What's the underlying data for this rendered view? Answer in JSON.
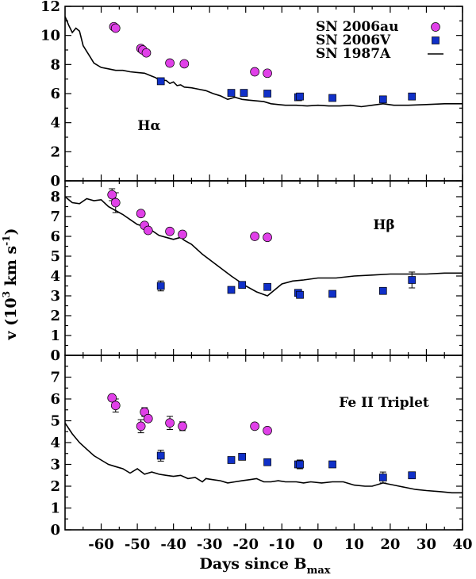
{
  "chart_data": {
    "type": "scatter",
    "xlabel_main": "Days since B",
    "xlabel_sub": "max",
    "ylabel_main": "v (10",
    "ylabel_sup1": "3",
    "ylabel_mid": " km s",
    "ylabel_sup2": "-1",
    "ylabel_end": ")",
    "xlim": [
      -70,
      40
    ],
    "xticks": [
      -60,
      -50,
      -40,
      -30,
      -20,
      -10,
      0,
      10,
      20,
      30,
      40
    ],
    "legend": [
      {
        "label": "SN 2006au",
        "marker": "circle",
        "color": "#e040e8"
      },
      {
        "label": "SN 2006V",
        "marker": "square",
        "color": "#1030c8"
      },
      {
        "label": "SN 1987A",
        "marker": "line",
        "color": "#000000"
      }
    ],
    "panels": [
      {
        "label": "Hα",
        "ylim": [
          0,
          12
        ],
        "yticks": [
          0,
          2,
          4,
          6,
          8,
          10,
          12
        ],
        "sn2006au": [
          [
            -56.5,
            10.6
          ],
          [
            -56,
            10.5
          ],
          [
            -49,
            9.1
          ],
          [
            -48.5,
            9.0
          ],
          [
            -47.5,
            8.8
          ],
          [
            -41,
            8.1
          ],
          [
            -37,
            8.05
          ],
          [
            -17.5,
            7.5
          ],
          [
            -14,
            7.4
          ]
        ],
        "sn2006v": [
          [
            -43.5,
            6.85
          ],
          [
            -24,
            6.05
          ],
          [
            -20.5,
            6.05
          ],
          [
            -14,
            6.0
          ],
          [
            -5.5,
            5.75
          ],
          [
            -5,
            5.8
          ],
          [
            4,
            5.7
          ],
          [
            18,
            5.6
          ],
          [
            26,
            5.8
          ]
        ],
        "sn2006au_err": [],
        "sn2006v_err": [],
        "sn1987a": [
          [
            -70,
            11.3
          ],
          [
            -69,
            10.7
          ],
          [
            -68,
            10.2
          ],
          [
            -67,
            10.5
          ],
          [
            -66,
            10.3
          ],
          [
            -65,
            9.3
          ],
          [
            -64,
            8.9
          ],
          [
            -63,
            8.5
          ],
          [
            -62,
            8.1
          ],
          [
            -60,
            7.8
          ],
          [
            -58,
            7.7
          ],
          [
            -56,
            7.6
          ],
          [
            -54,
            7.6
          ],
          [
            -52,
            7.5
          ],
          [
            -50,
            7.45
          ],
          [
            -48,
            7.4
          ],
          [
            -46,
            7.2
          ],
          [
            -45,
            7.1
          ],
          [
            -44,
            6.95
          ],
          [
            -42,
            6.9
          ],
          [
            -41,
            6.7
          ],
          [
            -40,
            6.8
          ],
          [
            -39,
            6.55
          ],
          [
            -38,
            6.6
          ],
          [
            -37,
            6.45
          ],
          [
            -35,
            6.4
          ],
          [
            -33,
            6.3
          ],
          [
            -31,
            6.2
          ],
          [
            -29,
            6.0
          ],
          [
            -27,
            5.85
          ],
          [
            -25,
            5.6
          ],
          [
            -23,
            5.75
          ],
          [
            -21,
            5.6
          ],
          [
            -19,
            5.55
          ],
          [
            -17,
            5.5
          ],
          [
            -15,
            5.45
          ],
          [
            -13,
            5.3
          ],
          [
            -11,
            5.25
          ],
          [
            -9,
            5.2
          ],
          [
            -6,
            5.2
          ],
          [
            -3,
            5.15
          ],
          [
            0,
            5.2
          ],
          [
            3,
            5.15
          ],
          [
            6,
            5.15
          ],
          [
            9,
            5.2
          ],
          [
            12,
            5.1
          ],
          [
            15,
            5.2
          ],
          [
            18,
            5.3
          ],
          [
            21,
            5.2
          ],
          [
            25,
            5.2
          ],
          [
            30,
            5.25
          ],
          [
            35,
            5.3
          ],
          [
            40,
            5.3
          ]
        ]
      },
      {
        "label": "Hβ",
        "ylim": [
          0,
          8.8
        ],
        "yticks": [
          0,
          1,
          2,
          3,
          4,
          5,
          6,
          7,
          8
        ],
        "sn2006au": [
          [
            -57,
            8.1
          ],
          [
            -56,
            7.7
          ],
          [
            -49,
            7.15
          ],
          [
            -48,
            6.55
          ],
          [
            -47,
            6.3
          ],
          [
            -41,
            6.25
          ],
          [
            -37.5,
            6.1
          ],
          [
            -17.5,
            6.0
          ],
          [
            -14,
            5.95
          ]
        ],
        "sn2006v": [
          [
            -43.5,
            3.5
          ],
          [
            -24,
            3.3
          ],
          [
            -21,
            3.55
          ],
          [
            -14,
            3.45
          ],
          [
            -5.5,
            3.15
          ],
          [
            -5,
            3.05
          ],
          [
            4,
            3.1
          ],
          [
            18,
            3.25
          ],
          [
            26,
            3.8
          ]
        ],
        "sn2006au_err": [
          [
            -57,
            8.1,
            0.3
          ],
          [
            -56,
            7.7,
            0.5
          ]
        ],
        "sn2006v_err": [
          [
            -43.5,
            3.5,
            0.25
          ],
          [
            26,
            3.8,
            0.4
          ]
        ],
        "sn1987a": [
          [
            -70,
            8.0
          ],
          [
            -68,
            7.7
          ],
          [
            -66,
            7.65
          ],
          [
            -64,
            7.9
          ],
          [
            -62,
            7.8
          ],
          [
            -60,
            7.85
          ],
          [
            -58,
            7.5
          ],
          [
            -56,
            7.3
          ],
          [
            -54,
            7.1
          ],
          [
            -52,
            6.85
          ],
          [
            -50,
            6.6
          ],
          [
            -48,
            6.5
          ],
          [
            -46,
            6.3
          ],
          [
            -44,
            6.05
          ],
          [
            -42,
            5.95
          ],
          [
            -40,
            5.85
          ],
          [
            -38,
            5.95
          ],
          [
            -37,
            5.8
          ],
          [
            -35,
            5.6
          ],
          [
            -32,
            5.1
          ],
          [
            -28,
            4.55
          ],
          [
            -24,
            4.0
          ],
          [
            -20,
            3.5
          ],
          [
            -17,
            3.2
          ],
          [
            -14,
            3.0
          ],
          [
            -12,
            3.3
          ],
          [
            -10,
            3.6
          ],
          [
            -7,
            3.75
          ],
          [
            -4,
            3.8
          ],
          [
            0,
            3.9
          ],
          [
            5,
            3.9
          ],
          [
            10,
            4.0
          ],
          [
            15,
            4.05
          ],
          [
            20,
            4.1
          ],
          [
            25,
            4.1
          ],
          [
            30,
            4.1
          ],
          [
            35,
            4.15
          ],
          [
            40,
            4.15
          ]
        ]
      },
      {
        "label": "Fe II Triplet",
        "ylim": [
          0,
          8
        ],
        "yticks": [
          0,
          1,
          2,
          3,
          4,
          5,
          6,
          7
        ],
        "sn2006au": [
          [
            -57,
            6.05
          ],
          [
            -56,
            5.7
          ],
          [
            -49,
            4.75
          ],
          [
            -48,
            5.4
          ],
          [
            -47,
            5.1
          ],
          [
            -41,
            4.9
          ],
          [
            -37.5,
            4.75
          ],
          [
            -17.5,
            4.75
          ],
          [
            -14,
            4.55
          ]
        ],
        "sn2006v": [
          [
            -43.5,
            3.4
          ],
          [
            -24,
            3.2
          ],
          [
            -21,
            3.35
          ],
          [
            -14,
            3.1
          ],
          [
            -5.5,
            3.0
          ],
          [
            -5,
            3.0
          ],
          [
            4,
            3.0
          ],
          [
            18,
            2.4
          ],
          [
            26,
            2.5
          ]
        ],
        "sn2006au_err": [
          [
            -56,
            5.7,
            0.3
          ],
          [
            -49,
            4.75,
            0.3
          ],
          [
            -48,
            5.4,
            0.2
          ],
          [
            -41,
            4.9,
            0.3
          ],
          [
            -37.5,
            4.75,
            0.2
          ]
        ],
        "sn2006v_err": [
          [
            -43.5,
            3.4,
            0.25
          ],
          [
            -5,
            3.0,
            0.2
          ],
          [
            18,
            2.4,
            0.25
          ]
        ],
        "sn1987a": [
          [
            -70,
            4.9
          ],
          [
            -68,
            4.4
          ],
          [
            -66,
            4.0
          ],
          [
            -64,
            3.7
          ],
          [
            -62,
            3.4
          ],
          [
            -60,
            3.2
          ],
          [
            -58,
            3.0
          ],
          [
            -56,
            2.9
          ],
          [
            -54,
            2.8
          ],
          [
            -52,
            2.6
          ],
          [
            -50,
            2.8
          ],
          [
            -48,
            2.55
          ],
          [
            -46,
            2.65
          ],
          [
            -44,
            2.55
          ],
          [
            -42,
            2.5
          ],
          [
            -40,
            2.45
          ],
          [
            -38,
            2.5
          ],
          [
            -36,
            2.35
          ],
          [
            -34,
            2.4
          ],
          [
            -32,
            2.2
          ],
          [
            -31,
            2.35
          ],
          [
            -29,
            2.3
          ],
          [
            -27,
            2.25
          ],
          [
            -25,
            2.15
          ],
          [
            -23,
            2.2
          ],
          [
            -21,
            2.25
          ],
          [
            -19,
            2.3
          ],
          [
            -17,
            2.35
          ],
          [
            -15,
            2.2
          ],
          [
            -13,
            2.2
          ],
          [
            -11,
            2.25
          ],
          [
            -9,
            2.2
          ],
          [
            -6,
            2.2
          ],
          [
            -4,
            2.15
          ],
          [
            -2,
            2.2
          ],
          [
            1,
            2.15
          ],
          [
            4,
            2.2
          ],
          [
            7,
            2.2
          ],
          [
            10,
            2.05
          ],
          [
            13,
            2.0
          ],
          [
            15,
            2.0
          ],
          [
            18,
            2.15
          ],
          [
            21,
            2.05
          ],
          [
            24,
            1.95
          ],
          [
            27,
            1.85
          ],
          [
            30,
            1.8
          ],
          [
            34,
            1.75
          ],
          [
            37,
            1.7
          ],
          [
            40,
            1.7
          ]
        ]
      }
    ]
  }
}
